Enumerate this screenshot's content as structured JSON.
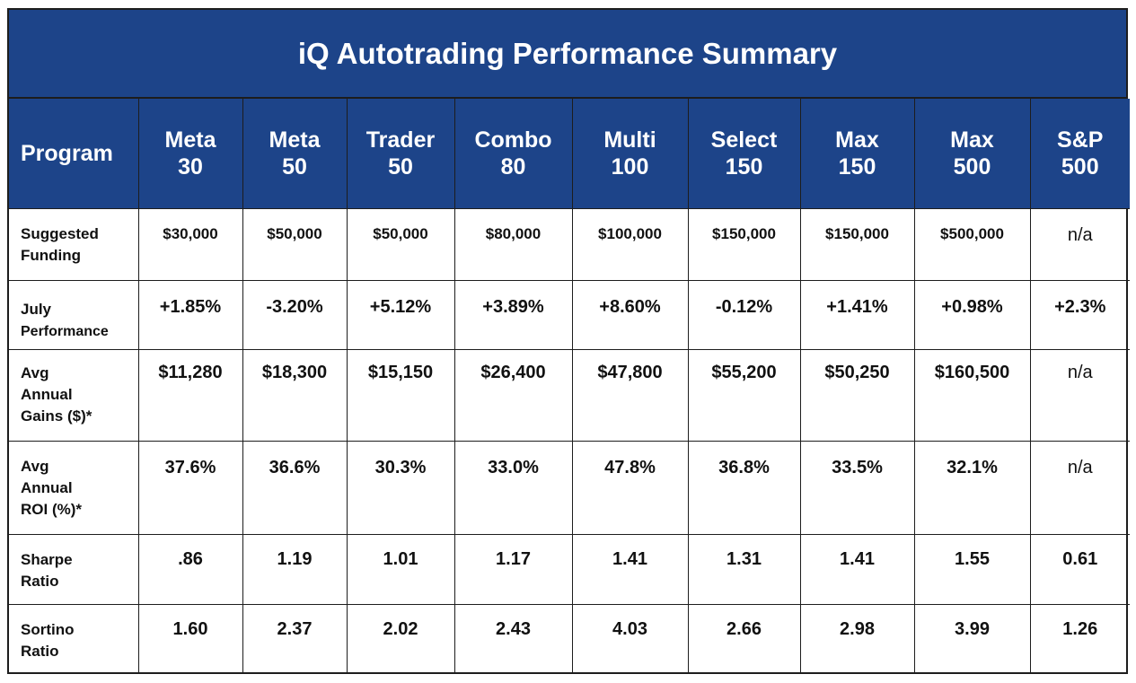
{
  "chart_data": {
    "type": "table",
    "title": "iQ Autotrading Performance Summary",
    "columns": [
      {
        "header_line1": "Program",
        "header_line2": ""
      },
      {
        "header_line1": "Meta",
        "header_line2": "30"
      },
      {
        "header_line1": "Meta",
        "header_line2": "50"
      },
      {
        "header_line1": "Trader",
        "header_line2": "50"
      },
      {
        "header_line1": "Combo",
        "header_line2": "80"
      },
      {
        "header_line1": "Multi",
        "header_line2": "100"
      },
      {
        "header_line1": "Select",
        "header_line2": "150"
      },
      {
        "header_line1": "Max",
        "header_line2": "150"
      },
      {
        "header_line1": "Max",
        "header_line2": "500"
      },
      {
        "header_line1": "S&P",
        "header_line2": "500"
      }
    ],
    "rows": [
      {
        "label_lines": [
          "Suggested",
          "Funding"
        ],
        "values": [
          "$30,000",
          "$50,000",
          "$50,000",
          "$80,000",
          "$100,000",
          "$150,000",
          "$150,000",
          "$500,000",
          "n/a"
        ]
      },
      {
        "label_lines": [
          "July",
          "Performance"
        ],
        "values": [
          "+1.85%",
          "-3.20%",
          "+5.12%",
          "+3.89%",
          "+8.60%",
          "-0.12%",
          "+1.41%",
          "+0.98%",
          "+2.3%"
        ]
      },
      {
        "label_lines": [
          "Avg",
          "Annual",
          "Gains ($)*"
        ],
        "values": [
          "$11,280",
          "$18,300",
          "$15,150",
          "$26,400",
          "$47,800",
          "$55,200",
          "$50,250",
          "$160,500",
          "n/a"
        ]
      },
      {
        "label_lines": [
          "Avg",
          "Annual",
          "ROI (%)*"
        ],
        "values": [
          "37.6%",
          "36.6%",
          "30.3%",
          "33.0%",
          "47.8%",
          "36.8%",
          "33.5%",
          "32.1%",
          "n/a"
        ]
      },
      {
        "label_lines": [
          "Sharpe",
          "Ratio"
        ],
        "values": [
          ".86",
          "1.19",
          "1.01",
          "1.17",
          "1.41",
          "1.31",
          "1.41",
          "1.55",
          "0.61"
        ]
      },
      {
        "label_lines": [
          "Sortino",
          "Ratio"
        ],
        "values": [
          "1.60",
          "2.37",
          "2.02",
          "2.43",
          "4.03",
          "2.66",
          "2.98",
          "3.99",
          "1.26"
        ]
      }
    ]
  },
  "colors": {
    "header_background": "#1d4489",
    "header_text": "#ffffff",
    "border": "#1d1d1d",
    "body_text": "#111111"
  }
}
